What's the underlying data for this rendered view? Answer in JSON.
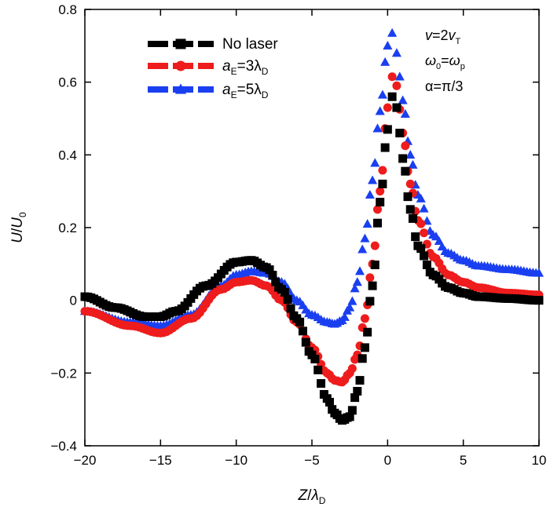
{
  "chart_data": {
    "type": "scatter",
    "xlabel": {
      "main": "Z",
      "sep": "/",
      "sym": "λ",
      "sub": "D"
    },
    "ylabel": {
      "main": "U",
      "sep": "/",
      "sym": "U",
      "sub": "0"
    },
    "xlim": [
      -20,
      10
    ],
    "ylim": [
      -0.4,
      0.8
    ],
    "xticks": [
      -20,
      -15,
      -10,
      -5,
      0,
      5,
      10
    ],
    "xtick_labels": [
      "−20",
      "−15",
      "−10",
      "−5",
      "0",
      "5",
      "10"
    ],
    "yticks": [
      -0.4,
      -0.2,
      0,
      0.2,
      0.4,
      0.6,
      0.8
    ],
    "ytick_labels": [
      "−0.4",
      "−0.2",
      "0",
      "0.2",
      "0.4",
      "0.6",
      "0.8"
    ],
    "grid": false,
    "legend_position": "top-left",
    "series": [
      {
        "name": "No laser",
        "legend": {
          "main": "No laser",
          "sub": "",
          "tail": "",
          "sub2": ""
        },
        "marker": "square",
        "color": "#000000",
        "x": [
          -20,
          -18,
          -16,
          -15,
          -14,
          -12,
          -10,
          -9,
          -8,
          -7,
          -6,
          -5,
          -4,
          -3.5,
          -3,
          -2.5,
          -2,
          -1.5,
          -1,
          -0.5,
          0,
          0.3,
          0.6,
          1,
          1.5,
          2,
          3,
          4,
          5,
          6,
          8,
          10
        ],
        "y": [
          0.01,
          -0.02,
          -0.045,
          -0.045,
          -0.03,
          0.04,
          0.105,
          0.11,
          0.09,
          0.03,
          -0.05,
          -0.15,
          -0.27,
          -0.31,
          -0.33,
          -0.32,
          -0.25,
          -0.13,
          0.04,
          0.27,
          0.47,
          0.56,
          0.53,
          0.39,
          0.25,
          0.15,
          0.07,
          0.035,
          0.02,
          0.01,
          0.005,
          0.0
        ]
      },
      {
        "name": "a_E=3λ_D",
        "legend": {
          "main": "a",
          "sub": "E",
          "tail": "=3λ",
          "sub2": "D"
        },
        "marker": "circle",
        "color": "#ee1c1c",
        "x": [
          -20,
          -17,
          -15,
          -13,
          -11,
          -10,
          -9,
          -8,
          -7,
          -6,
          -5,
          -4,
          -3.5,
          -3,
          -2.5,
          -2,
          -1.5,
          -1,
          -0.5,
          0,
          0.3,
          0.6,
          1,
          1.5,
          2,
          3,
          4,
          5,
          6,
          8,
          10
        ],
        "y": [
          -0.03,
          -0.07,
          -0.09,
          -0.05,
          0.03,
          0.05,
          0.055,
          0.04,
          0.0,
          -0.06,
          -0.13,
          -0.2,
          -0.22,
          -0.225,
          -0.2,
          -0.15,
          -0.05,
          0.1,
          0.3,
          0.53,
          0.615,
          0.59,
          0.46,
          0.32,
          0.22,
          0.12,
          0.07,
          0.05,
          0.035,
          0.02,
          0.015
        ]
      },
      {
        "name": "a_E=5λ_D",
        "legend": {
          "main": "a",
          "sub": "E",
          "tail": "=5λ",
          "sub2": "D"
        },
        "marker": "triangle",
        "color": "#1a3ff0",
        "x": [
          -20,
          -17,
          -15,
          -13,
          -11,
          -10,
          -9,
          -8,
          -7,
          -6,
          -5,
          -4,
          -3.5,
          -3,
          -2.5,
          -2,
          -1.5,
          -1,
          -0.5,
          0,
          0.3,
          0.6,
          1,
          1.5,
          2,
          3,
          4,
          5,
          6,
          8,
          10
        ],
        "y": [
          -0.03,
          -0.06,
          -0.07,
          -0.04,
          0.04,
          0.07,
          0.08,
          0.075,
          0.05,
          0.0,
          -0.04,
          -0.06,
          -0.065,
          -0.055,
          -0.02,
          0.05,
          0.17,
          0.33,
          0.52,
          0.7,
          0.735,
          0.68,
          0.55,
          0.4,
          0.29,
          0.18,
          0.13,
          0.11,
          0.095,
          0.085,
          0.075
        ]
      }
    ],
    "annotations": [
      {
        "a": "v",
        "b": "=2",
        "c": "v",
        "sub": "T"
      },
      {
        "a": "ω",
        "sub_a": "0",
        "b": "=",
        "c": "ω",
        "sub": "p"
      },
      {
        "text": "α=π/3"
      }
    ]
  }
}
